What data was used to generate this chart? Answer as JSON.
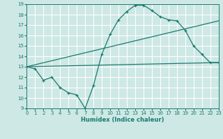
{
  "title": "",
  "xlabel": "Humidex (Indice chaleur)",
  "xlim": [
    0,
    23
  ],
  "ylim": [
    9,
    19
  ],
  "xticks": [
    0,
    1,
    2,
    3,
    4,
    5,
    6,
    7,
    8,
    9,
    10,
    11,
    12,
    13,
    14,
    15,
    16,
    17,
    18,
    19,
    20,
    21,
    22,
    23
  ],
  "yticks": [
    9,
    10,
    11,
    12,
    13,
    14,
    15,
    16,
    17,
    18,
    19
  ],
  "line_color": "#1a7a6e",
  "bg_color": "#cde8e5",
  "grid_color": "#ffffff",
  "line1_x": [
    0,
    1,
    2,
    3,
    4,
    5,
    6,
    7,
    8,
    9,
    10,
    11,
    12,
    13,
    14,
    15,
    16,
    17,
    18,
    19,
    20,
    21,
    22,
    23
  ],
  "line1_y": [
    13,
    12.8,
    11.7,
    12,
    11,
    10.5,
    10.3,
    9,
    11.2,
    14.2,
    16.1,
    17.5,
    18.3,
    18.9,
    18.9,
    18.4,
    17.8,
    17.5,
    17.4,
    16.5,
    15,
    14.2,
    13.4,
    13.4
  ],
  "line2_x": [
    0,
    23
  ],
  "line2_y": [
    13,
    13.4
  ],
  "line3_x": [
    0,
    23
  ],
  "line3_y": [
    13,
    17.4
  ]
}
